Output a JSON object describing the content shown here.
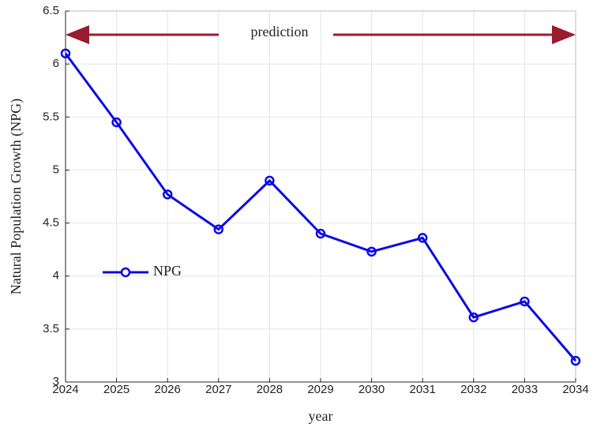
{
  "chart_data": {
    "type": "line",
    "x": [
      2024,
      2025,
      2026,
      2027,
      2028,
      2029,
      2030,
      2031,
      2032,
      2033,
      2034
    ],
    "series": [
      {
        "name": "NPG",
        "color": "#0a0ae6",
        "values": [
          6.1,
          5.45,
          4.77,
          4.44,
          4.9,
          4.4,
          4.23,
          4.36,
          3.61,
          3.76,
          3.2
        ]
      }
    ],
    "xlim": [
      2024,
      2034
    ],
    "xticks": [
      2024,
      2025,
      2026,
      2027,
      2028,
      2029,
      2030,
      2031,
      2032,
      2033,
      2034
    ],
    "ylim": [
      3,
      6.5
    ],
    "yticks": [
      3,
      3.5,
      4,
      4.5,
      5,
      5.5,
      6,
      6.5
    ],
    "xlabel": "year",
    "ylabel": "Natural Population Growth (NPG)",
    "annotation": "prediction",
    "grid": true,
    "legend": "left"
  }
}
